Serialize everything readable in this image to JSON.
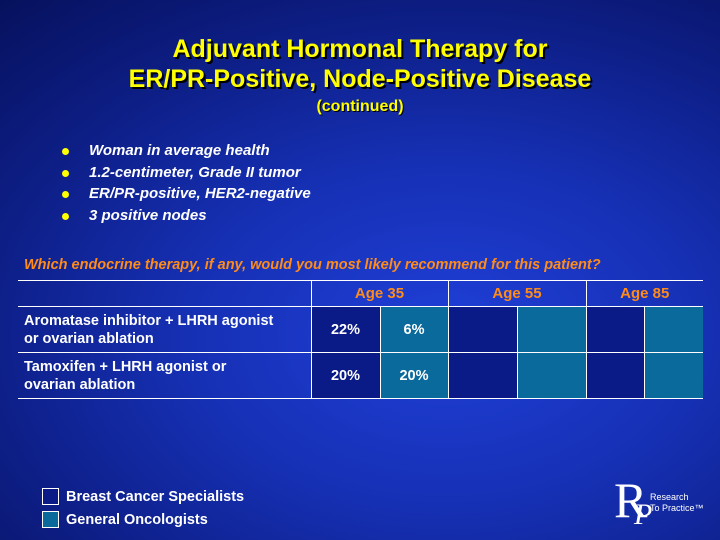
{
  "slide": {
    "title_lines": [
      "Adjuvant Hormonal Therapy for",
      "ER/PR-Positive, Node-Positive Disease"
    ],
    "subtitle": "(continued)"
  },
  "bullets": [
    "Woman in average health",
    "1.2-centimeter, Grade II tumor",
    "ER/PR-positive, HER2-negative",
    "3 positive nodes"
  ],
  "question": "Which endocrine therapy, if any, would you most likely recommend for this patient?",
  "table": {
    "age_headers": [
      "Age 35",
      "Age 55",
      "Age 85"
    ],
    "rows": [
      {
        "label_lines": [
          "Aromatase inhibitor + LHRH agonist",
          "or ovarian ablation"
        ],
        "values": [
          "22%",
          "6%",
          "",
          "",
          "",
          ""
        ]
      },
      {
        "label_lines": [
          "Tamoxifen + LHRH agonist or",
          "ovarian ablation"
        ],
        "values": [
          "20%",
          "20%",
          "",
          "",
          "",
          ""
        ]
      }
    ]
  },
  "legend": {
    "items": [
      "Breast Cancer Specialists",
      "General Oncologists"
    ]
  },
  "logo": {
    "letter_r": "R",
    "letter_p": "P",
    "line1": "Research",
    "line2": "To Practice™"
  },
  "colors": {
    "title": "#ffff00",
    "accent_orange": "#ff8c1a",
    "breast_cancer_specialists": "#0a1a86",
    "general_oncologists": "#0b6a9c"
  }
}
